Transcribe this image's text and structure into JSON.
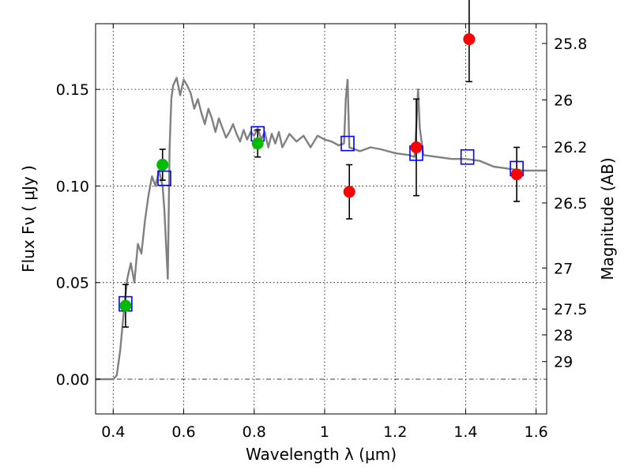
{
  "chart_data": {
    "type": "scatter",
    "xlabel": "Wavelength  λ (μm)",
    "ylabel": "Flux  Fν  ( μJy )",
    "y2label": "Magnitude (AB)",
    "xlim": [
      0.35,
      1.63
    ],
    "ylim": [
      -0.018,
      0.184
    ],
    "x_ticks": [
      0.4,
      0.6,
      0.8,
      1.0,
      1.2,
      1.4,
      1.6
    ],
    "x_tick_labels": [
      "0.4",
      "0.6",
      "0.8",
      "1",
      "1.2",
      "1.4",
      "1.6"
    ],
    "y_ticks": [
      0.0,
      0.05,
      0.1,
      0.15
    ],
    "y_tick_labels": [
      "0.00",
      "0.05",
      "0.10",
      "0.15"
    ],
    "mag_ticks": [
      25.8,
      26,
      26.2,
      26.5,
      27,
      27.5,
      28,
      29
    ],
    "mag_tick_labels": [
      "25.8",
      "26",
      "26.2",
      "26.5",
      "27",
      "27.5",
      "28",
      "29"
    ],
    "grid": true,
    "colors": {
      "model": "#808080",
      "green": "#00bb00",
      "red": "#ff0000",
      "box": "#0000ff",
      "error": "#000000"
    },
    "series": [
      {
        "name": "model spectrum",
        "kind": "line",
        "points": [
          [
            0.35,
            0.0
          ],
          [
            0.4,
            0.0
          ],
          [
            0.41,
            0.002
          ],
          [
            0.42,
            0.015
          ],
          [
            0.43,
            0.035
          ],
          [
            0.44,
            0.052
          ],
          [
            0.45,
            0.06
          ],
          [
            0.46,
            0.05
          ],
          [
            0.47,
            0.07
          ],
          [
            0.48,
            0.065
          ],
          [
            0.49,
            0.082
          ],
          [
            0.5,
            0.095
          ],
          [
            0.51,
            0.105
          ],
          [
            0.52,
            0.1
          ],
          [
            0.53,
            0.108
          ],
          [
            0.54,
            0.1
          ],
          [
            0.545,
            0.088
          ],
          [
            0.55,
            0.07
          ],
          [
            0.555,
            0.052
          ],
          [
            0.56,
            0.12
          ],
          [
            0.565,
            0.145
          ],
          [
            0.57,
            0.152
          ],
          [
            0.58,
            0.156
          ],
          [
            0.59,
            0.147
          ],
          [
            0.6,
            0.155
          ],
          [
            0.61,
            0.152
          ],
          [
            0.62,
            0.148
          ],
          [
            0.63,
            0.14
          ],
          [
            0.64,
            0.145
          ],
          [
            0.65,
            0.138
          ],
          [
            0.66,
            0.132
          ],
          [
            0.67,
            0.14
          ],
          [
            0.68,
            0.135
          ],
          [
            0.69,
            0.128
          ],
          [
            0.7,
            0.135
          ],
          [
            0.71,
            0.13
          ],
          [
            0.72,
            0.125
          ],
          [
            0.73,
            0.128
          ],
          [
            0.74,
            0.132
          ],
          [
            0.75,
            0.127
          ],
          [
            0.76,
            0.123
          ],
          [
            0.77,
            0.129
          ],
          [
            0.78,
            0.124
          ],
          [
            0.79,
            0.128
          ],
          [
            0.8,
            0.126
          ],
          [
            0.81,
            0.13
          ],
          [
            0.82,
            0.124
          ],
          [
            0.83,
            0.128
          ],
          [
            0.84,
            0.12
          ],
          [
            0.85,
            0.127
          ],
          [
            0.86,
            0.122
          ],
          [
            0.87,
            0.128
          ],
          [
            0.88,
            0.12
          ],
          [
            0.9,
            0.127
          ],
          [
            0.92,
            0.123
          ],
          [
            0.94,
            0.126
          ],
          [
            0.96,
            0.12
          ],
          [
            0.98,
            0.126
          ],
          [
            1.0,
            0.124
          ],
          [
            1.02,
            0.123
          ],
          [
            1.04,
            0.121
          ],
          [
            1.055,
            0.122
          ],
          [
            1.06,
            0.145
          ],
          [
            1.065,
            0.155
          ],
          [
            1.07,
            0.12
          ],
          [
            1.1,
            0.118
          ],
          [
            1.13,
            0.12
          ],
          [
            1.16,
            0.119
          ],
          [
            1.2,
            0.117
          ],
          [
            1.24,
            0.116
          ],
          [
            1.255,
            0.115
          ],
          [
            1.26,
            0.13
          ],
          [
            1.265,
            0.15
          ],
          [
            1.27,
            0.13
          ],
          [
            1.28,
            0.116
          ],
          [
            1.32,
            0.115
          ],
          [
            1.36,
            0.114
          ],
          [
            1.4,
            0.114
          ],
          [
            1.44,
            0.113
          ],
          [
            1.48,
            0.11
          ],
          [
            1.52,
            0.109
          ],
          [
            1.56,
            0.108
          ],
          [
            1.6,
            0.108
          ],
          [
            1.63,
            0.108
          ]
        ]
      },
      {
        "name": "green photometry",
        "kind": "points",
        "points": [
          {
            "x": 0.435,
            "y": 0.038,
            "err": 0.011
          },
          {
            "x": 0.54,
            "y": 0.111,
            "err": 0.008
          },
          {
            "x": 0.81,
            "y": 0.122,
            "err": 0.007
          }
        ]
      },
      {
        "name": "red photometry",
        "kind": "points",
        "points": [
          {
            "x": 1.07,
            "y": 0.097,
            "err": 0.014
          },
          {
            "x": 1.26,
            "y": 0.12,
            "err": 0.025
          },
          {
            "x": 1.41,
            "y": 0.176,
            "err": 0.022
          },
          {
            "x": 1.545,
            "y": 0.106,
            "err": 0.014
          }
        ]
      },
      {
        "name": "model band flux",
        "kind": "boxes",
        "points": [
          {
            "x": 0.435,
            "y": 0.039
          },
          {
            "x": 0.545,
            "y": 0.104
          },
          {
            "x": 0.81,
            "y": 0.127
          },
          {
            "x": 1.065,
            "y": 0.122
          },
          {
            "x": 1.26,
            "y": 0.117
          },
          {
            "x": 1.405,
            "y": 0.115
          },
          {
            "x": 1.545,
            "y": 0.109
          }
        ]
      }
    ]
  }
}
